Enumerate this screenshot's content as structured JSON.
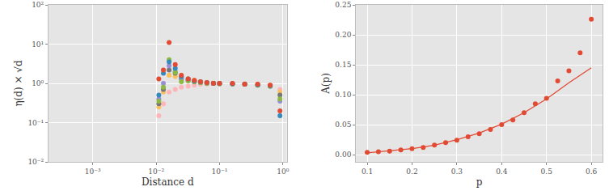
{
  "chart_data": [
    {
      "type": "scatter",
      "x_label": "Distance d",
      "y_label": "η(d) × √d",
      "log": true,
      "grid": true,
      "xlim": [
        0.0002,
        1.15
      ],
      "ylim": [
        0.01,
        100
      ],
      "xticks": [
        {
          "value": 0.001,
          "label": "10⁻³"
        },
        {
          "value": 0.01,
          "label": "10⁻²"
        },
        {
          "value": 0.1,
          "label": "10⁻¹"
        },
        {
          "value": 1,
          "label": "10⁰"
        }
      ],
      "yticks": [
        {
          "value": 0.01,
          "label": "10⁻²"
        },
        {
          "value": 0.1,
          "label": "10⁻¹"
        },
        {
          "value": 1,
          "label": "10⁰"
        },
        {
          "value": 10,
          "label": "10¹"
        },
        {
          "value": 100,
          "label": "10²"
        }
      ],
      "x": [
        0.011,
        0.013,
        0.016,
        0.02,
        0.025,
        0.032,
        0.04,
        0.05,
        0.063,
        0.08,
        0.1,
        0.16,
        0.25,
        0.4,
        0.63,
        0.9
      ],
      "series": [
        {
          "color": "#FFB5B8",
          "values": [
            0.15,
            0.3,
            0.6,
            0.7,
            0.8,
            0.85,
            0.9,
            0.95,
            0.97,
            1.0,
            1.0,
            1.0,
            0.98,
            0.95,
            0.9,
            0.7
          ]
        },
        {
          "color": "#FBC15E",
          "values": [
            0.25,
            0.6,
            1.6,
            1.5,
            1.4,
            1.3,
            1.2,
            1.1,
            1.05,
            1.02,
            1.0,
            0.98,
            0.96,
            0.92,
            0.9,
            0.6
          ]
        },
        {
          "color": "#777777",
          "values": [
            0.3,
            0.7,
            2.2,
            1.8,
            1.3,
            1.2,
            1.1,
            1.05,
            1.02,
            1.0,
            0.98,
            0.97,
            0.95,
            0.9,
            0.85,
            0.5
          ]
        },
        {
          "color": "#988ED5",
          "values": [
            0.4,
            1.0,
            2.8,
            2.0,
            1.4,
            1.2,
            1.1,
            1.05,
            1.0,
            1.0,
            1.0,
            0.97,
            0.95,
            0.92,
            0.85,
            0.35
          ]
        },
        {
          "color": "#8EBA42",
          "values": [
            0.35,
            0.8,
            4.0,
            1.9,
            1.1,
            1.15,
            1.1,
            1.05,
            1.0,
            1.0,
            0.98,
            0.96,
            0.95,
            0.9,
            0.85,
            0.4
          ]
        },
        {
          "color": "#348ABD",
          "values": [
            0.5,
            1.8,
            3.5,
            2.4,
            1.5,
            1.3,
            1.15,
            1.1,
            1.05,
            1.0,
            1.0,
            0.98,
            0.95,
            0.92,
            0.88,
            0.15
          ]
        },
        {
          "color": "#E24A33",
          "values": [
            1.3,
            2.2,
            11,
            3.0,
            1.6,
            1.3,
            1.2,
            1.1,
            1.05,
            1.0,
            1.0,
            1.0,
            0.95,
            0.95,
            0.9,
            0.2
          ]
        }
      ]
    },
    {
      "type": "scatter",
      "x_label": "p",
      "y_label": "A(p)",
      "grid": true,
      "xlim": [
        0.075,
        0.625
      ],
      "ylim": [
        -0.012,
        0.25
      ],
      "xticks": [
        {
          "value": 0.1,
          "label": "0.1"
        },
        {
          "value": 0.2,
          "label": "0.2"
        },
        {
          "value": 0.3,
          "label": "0.3"
        },
        {
          "value": 0.4,
          "label": "0.4"
        },
        {
          "value": 0.5,
          "label": "0.5"
        },
        {
          "value": 0.6,
          "label": "0.6"
        }
      ],
      "yticks": [
        {
          "value": 0,
          "label": "0.00"
        },
        {
          "value": 0.05,
          "label": "0.05"
        },
        {
          "value": 0.1,
          "label": "0.10"
        },
        {
          "value": 0.15,
          "label": "0.15"
        },
        {
          "value": 0.2,
          "label": "0.20"
        },
        {
          "value": 0.25,
          "label": "0.25"
        }
      ],
      "series": [
        {
          "type": "scatter",
          "color": "#E24A33",
          "x": [
            0.1,
            0.125,
            0.15,
            0.175,
            0.2,
            0.225,
            0.25,
            0.275,
            0.3,
            0.325,
            0.35,
            0.375,
            0.4,
            0.425,
            0.45,
            0.475,
            0.5,
            0.525,
            0.55,
            0.575,
            0.6
          ],
          "values": [
            0.004,
            0.005,
            0.006,
            0.008,
            0.01,
            0.012,
            0.016,
            0.02,
            0.024,
            0.03,
            0.035,
            0.042,
            0.05,
            0.058,
            0.07,
            0.085,
            0.094,
            0.123,
            0.14,
            0.17,
            0.226
          ]
        },
        {
          "type": "line",
          "color": "#E24A33",
          "x": [
            0.1,
            0.15,
            0.2,
            0.25,
            0.3,
            0.35,
            0.4,
            0.45,
            0.5,
            0.55,
            0.6
          ],
          "values": [
            0.003,
            0.006,
            0.01,
            0.016,
            0.025,
            0.036,
            0.051,
            0.07,
            0.093,
            0.12,
            0.145
          ]
        }
      ]
    }
  ]
}
